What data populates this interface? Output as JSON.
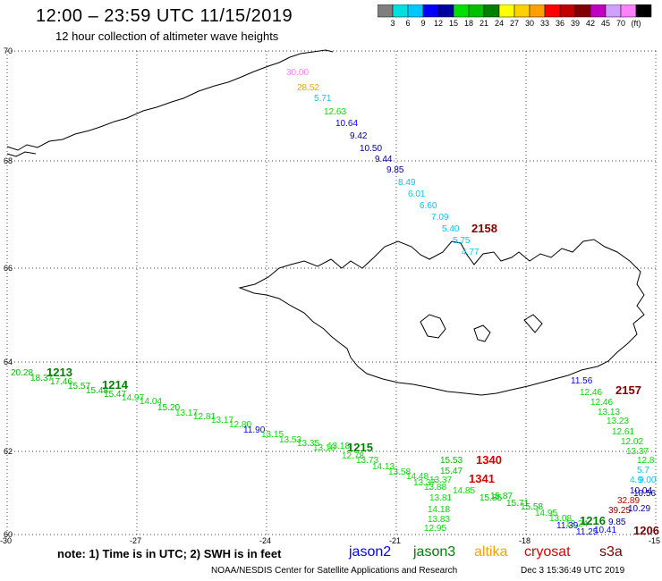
{
  "header": {
    "title": "12:00 – 23:59 UTC 11/15/2019",
    "subtitle": "12 hour collection of altimeter wave heights"
  },
  "colorbar": {
    "colors": [
      "#7f7f7f",
      "#00e0e0",
      "#00c8ff",
      "#0000ff",
      "#0000a0",
      "#00e000",
      "#00c000",
      "#008000",
      "#ffff00",
      "#ffd000",
      "#ffa000",
      "#ff0000",
      "#c00000",
      "#800000",
      "#c000c0",
      "#d0a0ff",
      "#ff80ff",
      "#000000"
    ],
    "labels": [
      "3",
      "6",
      "9",
      "12",
      "15",
      "18",
      "21",
      "24",
      "27",
      "30",
      "33",
      "36",
      "39",
      "42",
      "45",
      "70",
      "(ft)"
    ]
  },
  "axes": {
    "lat_labels": [
      "70",
      "68",
      "66",
      "64",
      "62",
      "60"
    ],
    "lon_labels": [
      "-30",
      "-27",
      "-24",
      "-21",
      "-18",
      "-15"
    ]
  },
  "passes": [
    {
      "label": "2158",
      "color": "#800000"
    },
    {
      "label": "1213",
      "color": "#008000"
    },
    {
      "label": "1214",
      "color": "#008000"
    },
    {
      "label": "1215",
      "color": "#008000"
    },
    {
      "label": "1340",
      "color": "#e00000"
    },
    {
      "label": "1341",
      "color": "#e00000"
    },
    {
      "label": "2157",
      "color": "#800000"
    },
    {
      "label": "1216",
      "color": "#008000"
    },
    {
      "label": "1206",
      "color": "#800000"
    }
  ],
  "track1": [
    {
      "v": "30.00",
      "c": "#ff80ff"
    },
    {
      "v": "28.52",
      "c": "#ffa000"
    },
    {
      "v": "5.71",
      "c": "#00c8ff"
    },
    {
      "v": "12.63",
      "c": "#00e000"
    },
    {
      "v": "10.64",
      "c": "#0000ff"
    },
    {
      "v": "9.42",
      "c": "#0000a0"
    },
    {
      "v": "10.50",
      "c": "#0000a0"
    },
    {
      "v": "9.44",
      "c": "#0000a0"
    },
    {
      "v": "9.85",
      "c": "#0000a0"
    },
    {
      "v": "8.49",
      "c": "#00c8ff"
    },
    {
      "v": "6.01",
      "c": "#00c8ff"
    },
    {
      "v": "6.60",
      "c": "#00c8ff"
    },
    {
      "v": "7.09",
      "c": "#00c8ff"
    },
    {
      "v": "5.40",
      "c": "#00c8ff"
    },
    {
      "v": "5.75",
      "c": "#00c8ff"
    },
    {
      "v": "4.77",
      "c": "#00c8ff"
    }
  ],
  "track2": [
    {
      "v": "20.28",
      "c": "#00c000"
    },
    {
      "v": "18.37",
      "c": "#00c000"
    },
    {
      "v": "17.46",
      "c": "#00c000"
    },
    {
      "v": "15.57",
      "c": "#00c000"
    },
    {
      "v": "15.48",
      "c": "#00c000"
    },
    {
      "v": "15.47",
      "c": "#00c000"
    },
    {
      "v": "14.97",
      "c": "#00e000"
    },
    {
      "v": "14.04",
      "c": "#00e000"
    },
    {
      "v": "15.20",
      "c": "#00c000"
    },
    {
      "v": "13.17",
      "c": "#00e000"
    },
    {
      "v": "12.81",
      "c": "#00e000"
    },
    {
      "v": "13.17",
      "c": "#00e000"
    },
    {
      "v": "12.80",
      "c": "#00e000"
    },
    {
      "v": "11.90",
      "c": "#0000ff"
    },
    {
      "v": "13.15",
      "c": "#00e000"
    },
    {
      "v": "13.53",
      "c": "#00e000"
    },
    {
      "v": "13.35",
      "c": "#00e000"
    },
    {
      "v": "13.10",
      "c": "#00e000"
    },
    {
      "v": "13.18",
      "c": "#00e000"
    },
    {
      "v": "12.78",
      "c": "#00e000"
    },
    {
      "v": "13.73",
      "c": "#00e000"
    },
    {
      "v": "14.13",
      "c": "#00e000"
    },
    {
      "v": "13.58",
      "c": "#00e000"
    },
    {
      "v": "14.48",
      "c": "#00e000"
    },
    {
      "v": "13.37",
      "c": "#00e000"
    },
    {
      "v": "13.88",
      "c": "#00e000"
    }
  ],
  "track3": [
    {
      "v": "15.53",
      "c": "#00c000"
    },
    {
      "v": "15.47",
      "c": "#00c000"
    },
    {
      "v": "13.37",
      "c": "#00e000"
    },
    {
      "v": "14.85",
      "c": "#00e000"
    },
    {
      "v": "13.81",
      "c": "#00e000"
    },
    {
      "v": "15.85",
      "c": "#00c000"
    },
    {
      "v": "15.87",
      "c": "#00c000"
    },
    {
      "v": "15.71",
      "c": "#00c000"
    },
    {
      "v": "15.58",
      "c": "#00c000"
    },
    {
      "v": "14.95",
      "c": "#00e000"
    },
    {
      "v": "13.08",
      "c": "#00e000"
    },
    {
      "v": "14.18",
      "c": "#00e000"
    },
    {
      "v": "13.83",
      "c": "#00e000"
    },
    {
      "v": "12.95",
      "c": "#00e000"
    },
    {
      "v": "13.24",
      "c": "#00e000"
    }
  ],
  "track4": [
    {
      "v": "11.56",
      "c": "#0000ff"
    },
    {
      "v": "12.46",
      "c": "#00e000"
    },
    {
      "v": "12.46",
      "c": "#00e000"
    },
    {
      "v": "13.13",
      "c": "#00e000"
    },
    {
      "v": "13.23",
      "c": "#00e000"
    },
    {
      "v": "12.61",
      "c": "#00e000"
    },
    {
      "v": "12.02",
      "c": "#00e000"
    },
    {
      "v": "13.37",
      "c": "#00e000"
    },
    {
      "v": "12.8",
      "c": "#00e000"
    },
    {
      "v": "5.7",
      "c": "#00c8ff"
    },
    {
      "v": "9.00",
      "c": "#00c8ff"
    },
    {
      "v": "4.9",
      "c": "#00c8ff"
    },
    {
      "v": "10.04",
      "c": "#0000a0"
    },
    {
      "v": "10.56",
      "c": "#0000a0"
    },
    {
      "v": "32.89",
      "c": "#c00000"
    },
    {
      "v": "10.29",
      "c": "#0000a0"
    },
    {
      "v": "39.25",
      "c": "#800000"
    },
    {
      "v": "9.85",
      "c": "#0000a0"
    },
    {
      "v": "11.39",
      "c": "#0000ff"
    },
    {
      "v": "11.25",
      "c": "#0000ff"
    },
    {
      "v": "10.41",
      "c": "#0000ff"
    }
  ],
  "footer": {
    "note": "note: 1) Time is in UTC; 2) SWH is in feet",
    "satellites": [
      {
        "name": "jason2",
        "color": "#0000ff"
      },
      {
        "name": "jason3",
        "color": "#008000"
      },
      {
        "name": "altika",
        "color": "#ffa000"
      },
      {
        "name": "cryosat",
        "color": "#e00000"
      },
      {
        "name": "s3a",
        "color": "#800000"
      }
    ],
    "credit": "NOAA/NESDIS Center for Satellite Applications and Research",
    "date": "Dec  3 15:36:49 UTC 2019"
  }
}
